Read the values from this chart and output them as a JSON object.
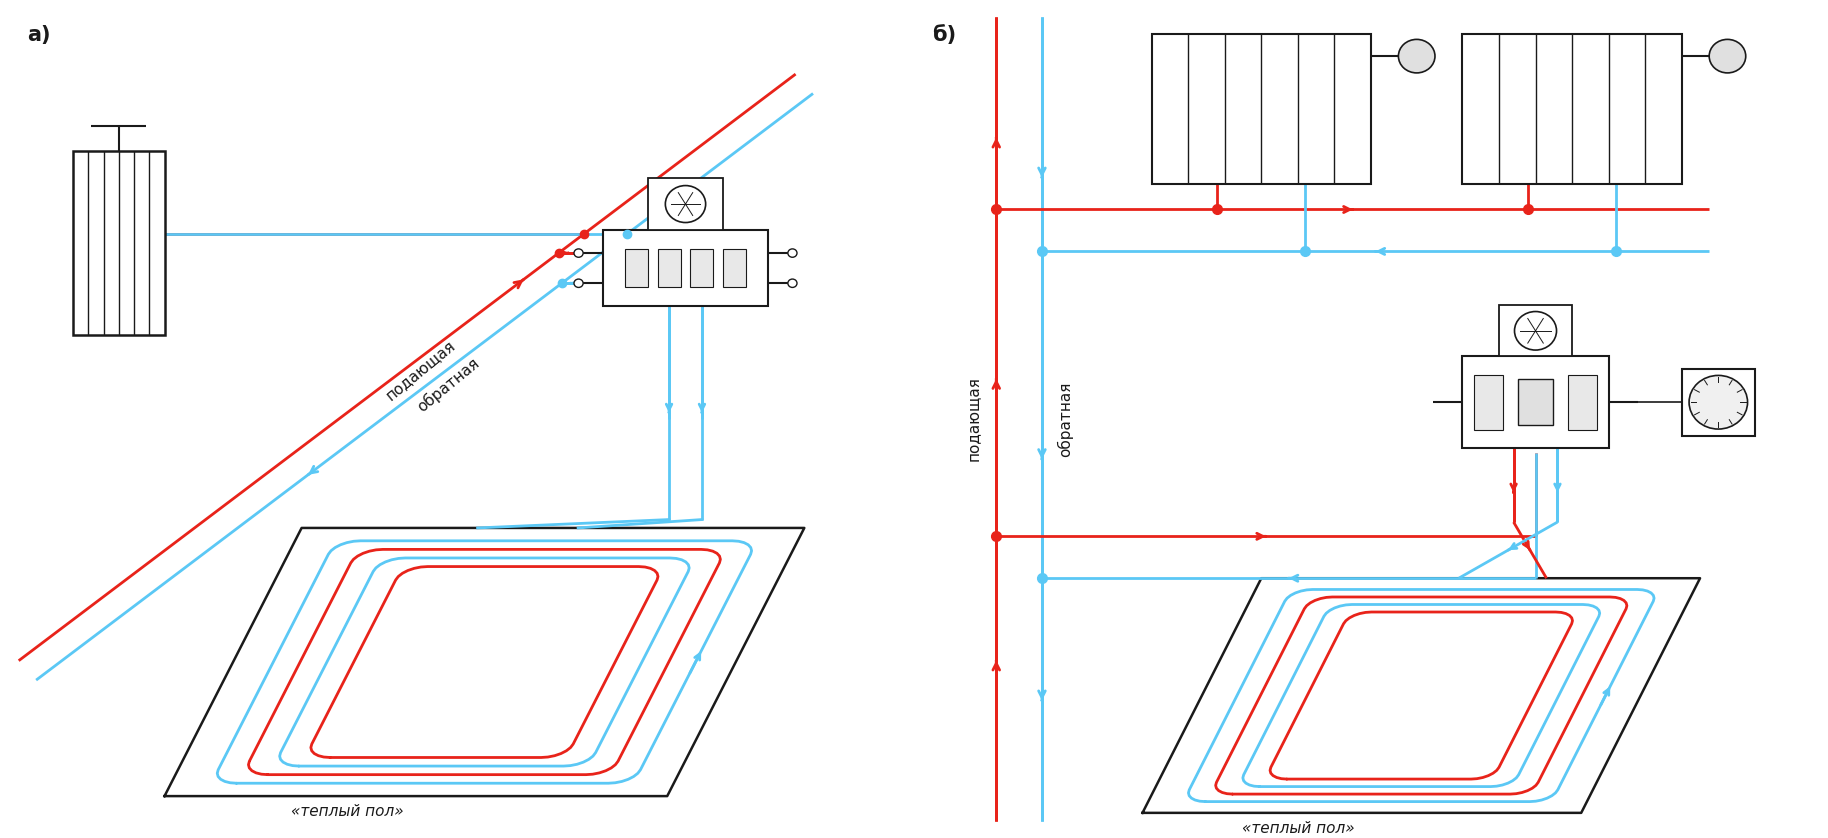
{
  "red_color": "#e8231a",
  "blue_color": "#5bc8f5",
  "dark_color": "#1a1a1a",
  "bg_color": "#ffffff",
  "label_a": "а)",
  "label_b": "б)",
  "label_podayushchaya": "подающая",
  "label_obratnaya": "обратная",
  "label_teply_pol": "«теплый пол»",
  "lw": 2.0
}
